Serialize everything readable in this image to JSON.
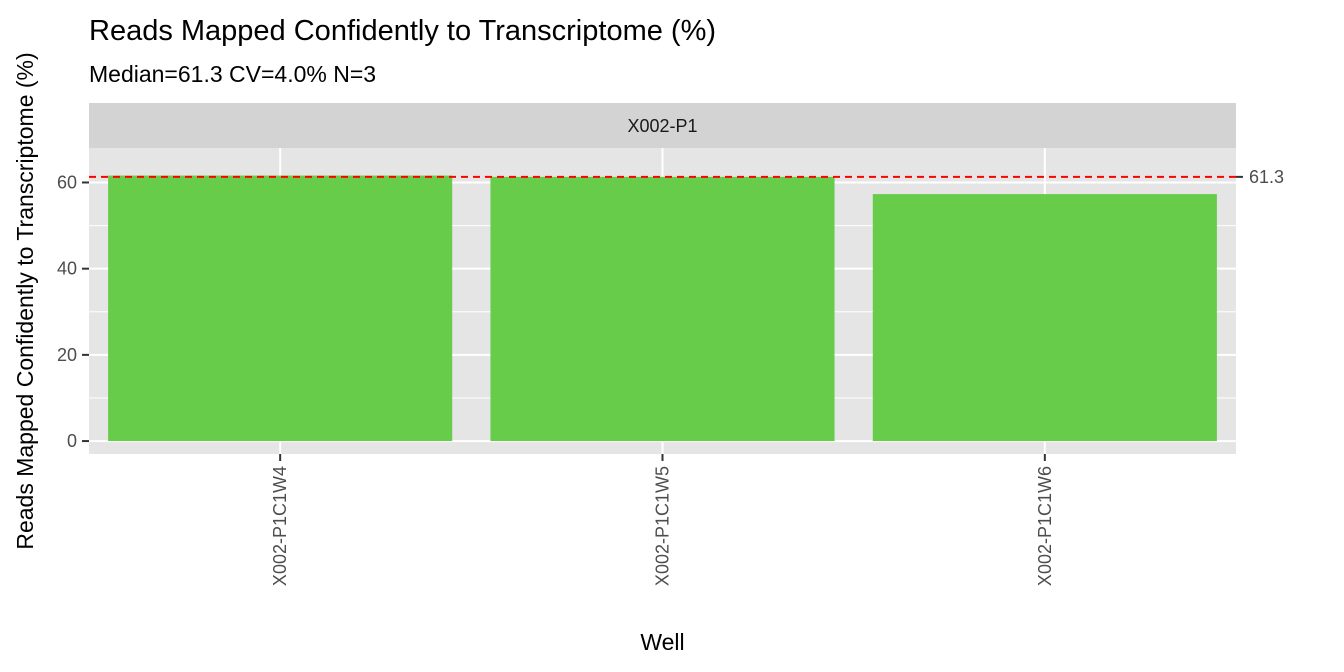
{
  "chart_data": {
    "type": "bar",
    "title": "Reads Mapped Confidently to Transcriptome (%)",
    "subtitle": "Median=61.3    CV=4.0%    N=3",
    "facet": "X002-P1",
    "xlabel": "Well",
    "ylabel": "Reads Mapped Confidently to Transcriptome (%)",
    "categories": [
      "X002-P1C1W4",
      "X002-P1C1W5",
      "X002-P1C1W6"
    ],
    "values": [
      61.6,
      61.3,
      57.3
    ],
    "ylim": [
      -3,
      68
    ],
    "yticks": [
      0,
      20,
      40,
      60
    ],
    "reference_line": {
      "value": 61.3,
      "label": "61.3",
      "style": "dashed",
      "color": "#ff0000"
    },
    "bar_color": "#66cc4a",
    "panel_background": "#e5e5e5",
    "strip_background": "#d3d3d3",
    "grid": true,
    "legend": "none"
  }
}
